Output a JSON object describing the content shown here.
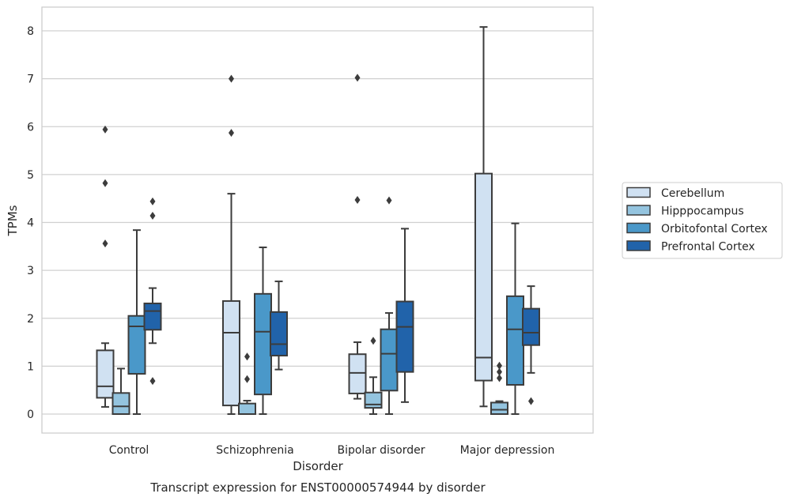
{
  "chart_data": {
    "type": "box",
    "title": "",
    "caption": "Transcript expression for ENST00000574944 by disorder",
    "xlabel": "Disorder",
    "ylabel": "TPMs",
    "ylim": [
      -0.4,
      8.5
    ],
    "yticks": [
      0,
      1,
      2,
      3,
      4,
      5,
      6,
      7,
      8
    ],
    "grid": true,
    "legend_position": "right",
    "categories": [
      "Control",
      "Schizophrenia",
      "Bipolar disorder",
      "Major depression"
    ],
    "series": [
      {
        "name": "Cerebellum",
        "color": "#d0e1f2",
        "boxes": [
          {
            "whislo": 0.15,
            "q1": 0.34,
            "median": 0.58,
            "q3": 1.33,
            "whishi": 1.48,
            "fliers": [
              3.56,
              4.82,
              5.94
            ]
          },
          {
            "whislo": 0.0,
            "q1": 0.18,
            "median": 1.7,
            "q3": 2.36,
            "whishi": 4.6,
            "fliers": [
              5.87,
              7.0
            ]
          },
          {
            "whislo": 0.32,
            "q1": 0.43,
            "median": 0.86,
            "q3": 1.25,
            "whishi": 1.5,
            "fliers": [
              4.47,
              7.02
            ]
          },
          {
            "whislo": 0.16,
            "q1": 0.7,
            "median": 1.18,
            "q3": 5.02,
            "whishi": 8.08,
            "fliers": []
          }
        ]
      },
      {
        "name": "Hipppocampus",
        "color": "#94c4df",
        "boxes": [
          {
            "whislo": 0.0,
            "q1": 0.0,
            "median": 0.16,
            "q3": 0.44,
            "whishi": 0.95,
            "fliers": []
          },
          {
            "whislo": 0.0,
            "q1": 0.0,
            "median": 0.0,
            "q3": 0.22,
            "whishi": 0.28,
            "fliers": [
              0.73,
              1.2
            ]
          },
          {
            "whislo": 0.0,
            "q1": 0.13,
            "median": 0.2,
            "q3": 0.45,
            "whishi": 0.77,
            "fliers": [
              1.53
            ]
          },
          {
            "whislo": 0.0,
            "q1": 0.0,
            "median": 0.09,
            "q3": 0.24,
            "whishi": 0.27,
            "fliers": [
              0.75,
              0.88,
              1.01
            ]
          }
        ]
      },
      {
        "name": "Orbitofontal Cortex",
        "color": "#4a98c9",
        "boxes": [
          {
            "whislo": 0.0,
            "q1": 0.84,
            "median": 1.83,
            "q3": 2.05,
            "whishi": 3.84,
            "fliers": []
          },
          {
            "whislo": 0.0,
            "q1": 0.41,
            "median": 1.72,
            "q3": 2.51,
            "whishi": 3.48,
            "fliers": []
          },
          {
            "whislo": 0.0,
            "q1": 0.49,
            "median": 1.26,
            "q3": 1.77,
            "whishi": 2.11,
            "fliers": [
              4.46
            ]
          },
          {
            "whislo": 0.0,
            "q1": 0.61,
            "median": 1.77,
            "q3": 2.46,
            "whishi": 3.98,
            "fliers": []
          }
        ]
      },
      {
        "name": "Prefrontal Cortex",
        "color": "#2163aa",
        "boxes": [
          {
            "whislo": 1.48,
            "q1": 1.76,
            "median": 2.15,
            "q3": 2.31,
            "whishi": 2.63,
            "fliers": [
              0.69,
              4.14,
              4.44
            ]
          },
          {
            "whislo": 0.93,
            "q1": 1.22,
            "median": 1.46,
            "q3": 2.13,
            "whishi": 2.77,
            "fliers": []
          },
          {
            "whislo": 0.25,
            "q1": 0.88,
            "median": 1.82,
            "q3": 2.35,
            "whishi": 3.87,
            "fliers": []
          },
          {
            "whislo": 0.86,
            "q1": 1.44,
            "median": 1.7,
            "q3": 2.2,
            "whishi": 2.67,
            "fliers": [
              0.27
            ]
          }
        ]
      }
    ]
  }
}
